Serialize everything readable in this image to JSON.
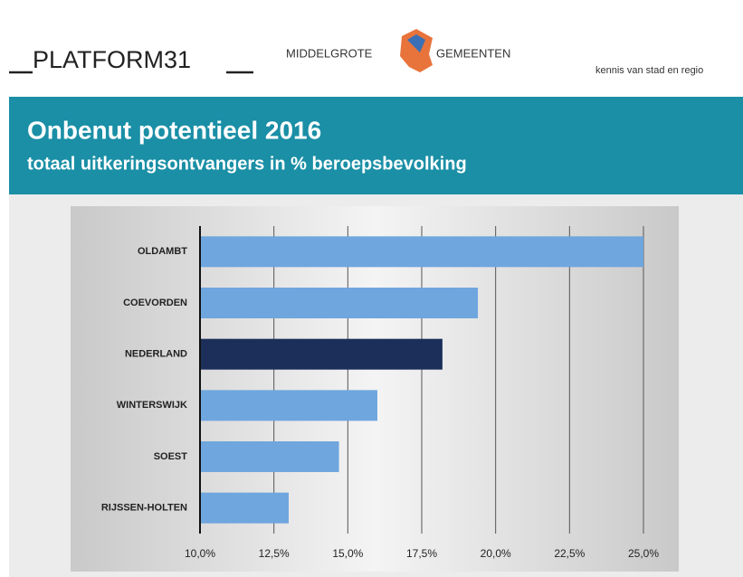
{
  "header": {
    "brand": "PLATFORM31",
    "partner_left": "MIDDELGROTE",
    "partner_right": "GEMEENTEN",
    "tagline": "kennis van stad en regio"
  },
  "chart_data": {
    "type": "bar",
    "orientation": "horizontal",
    "title": "Onbenut potentieel 2016",
    "subtitle": "totaal uitkeringsontvangers in % beroepsbevolking",
    "categories": [
      "OLDAMBT",
      "COEVORDEN",
      "NEDERLAND",
      "WINTERSWIJK",
      "SOEST",
      "RIJSSEN-HOLTEN"
    ],
    "values": [
      25.0,
      19.4,
      18.2,
      16.0,
      14.7,
      13.0
    ],
    "colors": [
      "#6fa6de",
      "#6fa6de",
      "#1c2f5a",
      "#6fa6de",
      "#6fa6de",
      "#6fa6de"
    ],
    "xlim": [
      10,
      25
    ],
    "xticks": [
      {
        "value": 10,
        "label": "10,0%"
      },
      {
        "value": 12.5,
        "label": "12,5%"
      },
      {
        "value": 15,
        "label": "15,0%"
      },
      {
        "value": 17.5,
        "label": "17,5%"
      },
      {
        "value": 20,
        "label": "20,0%"
      },
      {
        "value": 22.5,
        "label": "22,5%"
      },
      {
        "value": 25,
        "label": "25,0%"
      }
    ],
    "grid": true
  }
}
